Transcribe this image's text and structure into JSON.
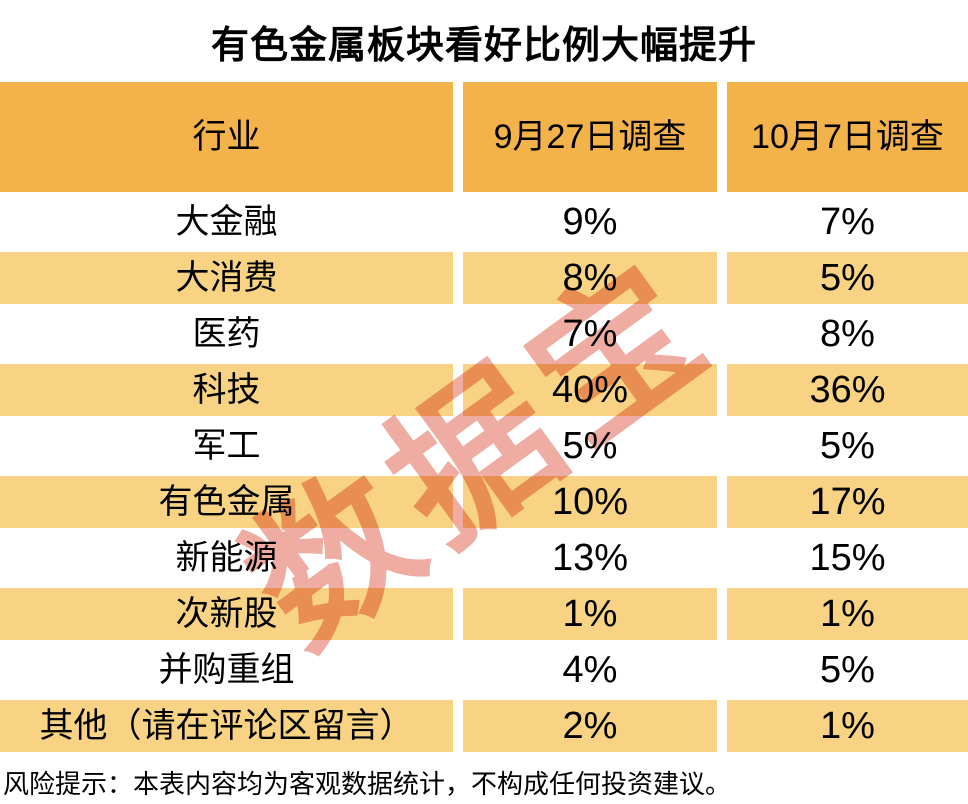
{
  "title": "有色金属板块看好比例大幅提升",
  "watermark": "数据宝",
  "footer": "风险提示：本表内容均为客观数据统计，不构成任何投资建议。",
  "colors": {
    "header_bg": "#F4B34A",
    "alt_row_bg": "#F8D383",
    "watermark": "#EFACA2",
    "text": "#000000"
  },
  "table": {
    "columns": [
      "行业",
      "9月27日调查",
      "10月7日调查"
    ],
    "rows": [
      [
        "大金融",
        "9%",
        "7%"
      ],
      [
        "大消费",
        "8%",
        "5%"
      ],
      [
        "医药",
        "7%",
        "8%"
      ],
      [
        "科技",
        "40%",
        "36%"
      ],
      [
        "军工",
        "5%",
        "5%"
      ],
      [
        "有色金属",
        "10%",
        "17%"
      ],
      [
        "新能源",
        "13%",
        "15%"
      ],
      [
        "次新股",
        "1%",
        "1%"
      ],
      [
        "并购重组",
        "4%",
        "5%"
      ],
      [
        "其他（请在评论区留言）",
        "2%",
        "1%"
      ]
    ]
  },
  "chart_data": {
    "type": "table",
    "title": "有色金属板块看好比例大幅提升",
    "categories": [
      "大金融",
      "大消费",
      "医药",
      "科技",
      "军工",
      "有色金属",
      "新能源",
      "次新股",
      "并购重组",
      "其他（请在评论区留言）"
    ],
    "series": [
      {
        "name": "9月27日调查",
        "values": [
          9,
          8,
          7,
          40,
          5,
          10,
          13,
          1,
          4,
          2
        ]
      },
      {
        "name": "10月7日调查",
        "values": [
          7,
          5,
          8,
          36,
          5,
          17,
          15,
          1,
          5,
          1
        ]
      }
    ],
    "unit": "%",
    "note": "风险提示：本表内容均为客观数据统计，不构成任何投资建议。"
  }
}
